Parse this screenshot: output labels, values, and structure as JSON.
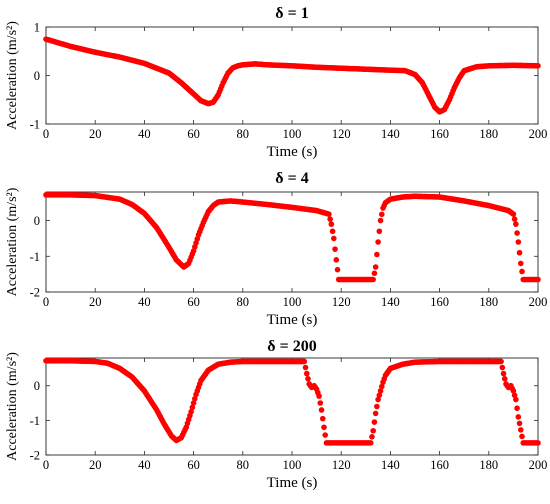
{
  "figure": {
    "marker_color": "#ff0000",
    "axis_color": "#262626"
  },
  "chart_data": [
    {
      "type": "scatter",
      "title": "δ = 1",
      "xlabel": "Time (s)",
      "ylabel": "Acceleration (m/s²)",
      "xlim": [
        0,
        200
      ],
      "ylim": [
        -1,
        1
      ],
      "xticks": [
        0,
        20,
        40,
        60,
        80,
        100,
        120,
        140,
        160,
        180,
        200
      ],
      "yticks": [
        -1,
        0,
        1
      ],
      "grid": false,
      "legend": "none",
      "series": [
        {
          "color": "#ff0000",
          "x": [
            0,
            10,
            20,
            30,
            40,
            50,
            55,
            60,
            63,
            66,
            68,
            70,
            72,
            74,
            76,
            78,
            80,
            85,
            90,
            100,
            110,
            120,
            130,
            140,
            146,
            150,
            153,
            156,
            158,
            160,
            162,
            164,
            166,
            168,
            170,
            175,
            180,
            190,
            200
          ],
          "y": [
            0.75,
            0.6,
            0.48,
            0.38,
            0.25,
            0.05,
            -0.15,
            -0.38,
            -0.52,
            -0.58,
            -0.55,
            -0.4,
            -0.15,
            0.05,
            0.16,
            0.2,
            0.22,
            0.24,
            0.22,
            0.2,
            0.17,
            0.15,
            0.13,
            0.11,
            0.1,
            0.02,
            -0.15,
            -0.45,
            -0.65,
            -0.75,
            -0.7,
            -0.5,
            -0.25,
            -0.05,
            0.1,
            0.18,
            0.2,
            0.21,
            0.2
          ]
        }
      ]
    },
    {
      "type": "scatter",
      "title": "δ = 4",
      "xlabel": "Time (s)",
      "ylabel": "Acceleration (m/s²)",
      "xlim": [
        0,
        200
      ],
      "ylim": [
        -2,
        0.8
      ],
      "xticks": [
        0,
        20,
        40,
        60,
        80,
        100,
        120,
        140,
        160,
        180,
        200
      ],
      "yticks": [
        -2,
        -1,
        0
      ],
      "grid": false,
      "legend": "none",
      "series": [
        {
          "color": "#ff0000",
          "x": [
            0,
            10,
            20,
            30,
            35,
            40,
            45,
            50,
            53,
            56,
            58,
            60,
            62,
            64,
            66,
            68,
            70,
            75,
            80,
            90,
            100,
            110,
            115,
            116,
            117,
            118,
            119,
            120,
            125,
            130,
            133,
            134,
            135,
            136,
            137,
            138,
            140,
            145,
            150,
            160,
            170,
            180,
            188,
            190,
            191,
            192,
            193,
            194,
            196,
            198,
            200
          ],
          "y": [
            0.72,
            0.72,
            0.7,
            0.6,
            0.45,
            0.2,
            -0.2,
            -0.75,
            -1.1,
            -1.3,
            -1.2,
            -0.85,
            -0.4,
            -0.05,
            0.25,
            0.42,
            0.52,
            0.55,
            0.52,
            0.45,
            0.37,
            0.28,
            0.18,
            -0.1,
            -0.5,
            -1.1,
            -1.65,
            -1.65,
            -1.65,
            -1.65,
            -1.65,
            -1.3,
            -0.6,
            0,
            0.35,
            0.5,
            0.6,
            0.66,
            0.68,
            0.66,
            0.55,
            0.42,
            0.28,
            0.18,
            -0.1,
            -0.6,
            -1.2,
            -1.65,
            -1.65,
            -1.65,
            -1.65
          ]
        }
      ]
    },
    {
      "type": "scatter",
      "title": "δ = 200",
      "xlabel": "Time (s)",
      "ylabel": "Acceleration (m/s²)",
      "xlim": [
        0,
        200
      ],
      "ylim": [
        -2,
        0.8
      ],
      "xticks": [
        0,
        20,
        40,
        60,
        80,
        100,
        120,
        140,
        160,
        180,
        200
      ],
      "yticks": [
        -2,
        -1,
        0
      ],
      "grid": false,
      "legend": "none",
      "series": [
        {
          "color": "#ff0000",
          "x": [
            0,
            10,
            20,
            25,
            30,
            35,
            40,
            45,
            48,
            51,
            53,
            55,
            57,
            59,
            61,
            63,
            66,
            70,
            75,
            80,
            90,
            100,
            105,
            106,
            107,
            108,
            109,
            110,
            111,
            112,
            113,
            114,
            118,
            122,
            126,
            130,
            132,
            133,
            134,
            135,
            136,
            137,
            138,
            140,
            145,
            150,
            160,
            170,
            180,
            185,
            186,
            187,
            188,
            189,
            190,
            191,
            192,
            194,
            197,
            200
          ],
          "y": [
            0.72,
            0.72,
            0.7,
            0.65,
            0.5,
            0.25,
            -0.15,
            -0.7,
            -1.1,
            -1.45,
            -1.58,
            -1.5,
            -1.2,
            -0.75,
            -0.25,
            0.15,
            0.45,
            0.62,
            0.68,
            0.7,
            0.7,
            0.7,
            0.7,
            0.35,
            0.05,
            -0.05,
            0,
            -0.1,
            -0.3,
            -0.7,
            -1.2,
            -1.65,
            -1.65,
            -1.65,
            -1.65,
            -1.65,
            -1.65,
            -1.3,
            -0.8,
            -0.4,
            -0.15,
            0.1,
            0.3,
            0.5,
            0.62,
            0.68,
            0.7,
            0.7,
            0.7,
            0.7,
            0.35,
            0.05,
            -0.05,
            0,
            -0.15,
            -0.4,
            -0.9,
            -1.65,
            -1.65,
            -1.65
          ]
        }
      ]
    }
  ]
}
